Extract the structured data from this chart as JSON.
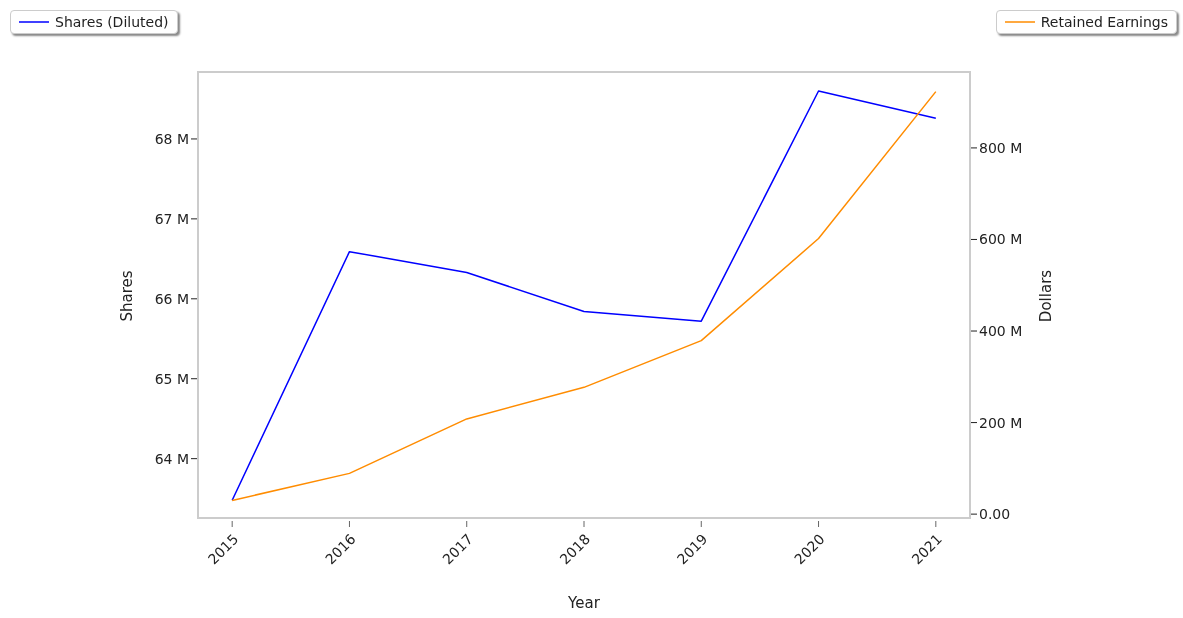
{
  "chart_data": {
    "type": "line",
    "xlabel": "Year",
    "ylabel": "Shares",
    "y2label": "Dollars",
    "x": [
      2015,
      2016,
      2017,
      2018,
      2019,
      2020,
      2021
    ],
    "xlim": [
      2014.7,
      2021.3
    ],
    "xticks": [
      2015,
      2016,
      2017,
      2018,
      2019,
      2020,
      2021
    ],
    "ylim": [
      63.22,
      68.85
    ],
    "yticks": [
      {
        "value": 64,
        "label": "64 M"
      },
      {
        "value": 65,
        "label": "65 M"
      },
      {
        "value": 66,
        "label": "66 M"
      },
      {
        "value": 67,
        "label": "67 M"
      },
      {
        "value": 68,
        "label": "68 M"
      }
    ],
    "y2lim": [
      -15,
      968
    ],
    "y2ticks": [
      {
        "value": 0,
        "label": "0.00"
      },
      {
        "value": 200,
        "label": "200 M"
      },
      {
        "value": 400,
        "label": "400 M"
      },
      {
        "value": 600,
        "label": "600 M"
      },
      {
        "value": 800,
        "label": "800 M"
      }
    ],
    "series": [
      {
        "name": "Shares (Diluted)",
        "color": "#0000ff",
        "values": [
          63.48,
          66.59,
          66.33,
          65.84,
          65.72,
          68.6,
          68.26
        ]
      },
      {
        "name": "Retained Earnings",
        "color": "#ff8c00",
        "axis": "y2",
        "values": [
          30,
          89,
          208,
          277,
          379,
          602,
          923
        ]
      }
    ],
    "legend": "top",
    "marker": "none",
    "line_style": "solid"
  }
}
